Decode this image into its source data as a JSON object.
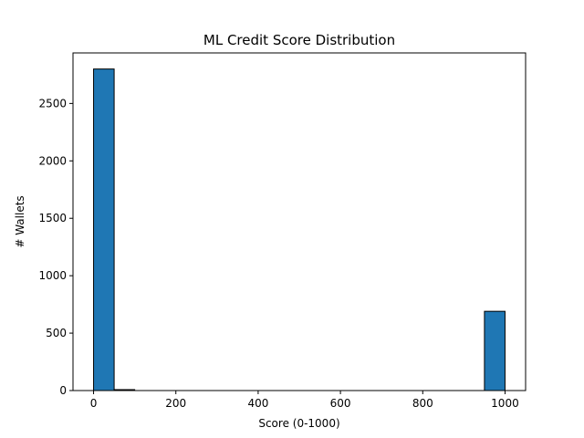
{
  "chart_data": {
    "type": "bar",
    "title": "ML Credit Score Distribution",
    "xlabel": "Score (0-1000)",
    "ylabel": "# Wallets",
    "xlim": [
      -50,
      1050
    ],
    "ylim": [
      0,
      2940
    ],
    "xticks": [
      0,
      200,
      400,
      600,
      800,
      1000
    ],
    "yticks": [
      0,
      500,
      1000,
      1500,
      2000,
      2500
    ],
    "bins": [
      {
        "start": 0,
        "end": 50,
        "value": 2800
      },
      {
        "start": 50,
        "end": 100,
        "value": 8
      },
      {
        "start": 950,
        "end": 1000,
        "value": 690
      }
    ],
    "bar_color": "#1f77b4",
    "edge_color": "#000000",
    "grid": false,
    "legend": false
  }
}
